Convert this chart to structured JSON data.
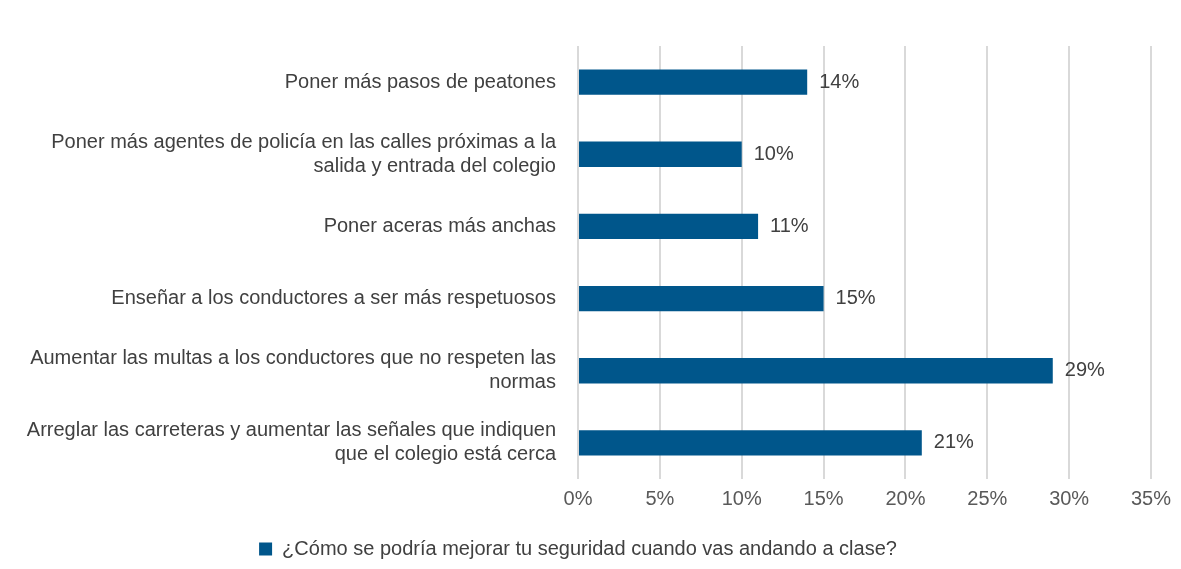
{
  "chart_data": {
    "type": "bar",
    "orientation": "horizontal",
    "categories": [
      "Poner más pasos de peatones",
      "Poner más agentes de policía en las calles próximas a la salida y entrada del colegio",
      "Poner aceras más anchas",
      "Enseñar a los conductores a ser más respetuosos",
      "Aumentar las multas a los conductores que no respeten las normas",
      "Arreglar las carreteras y aumentar las señales que indiquen que el colegio está cerca"
    ],
    "series": [
      {
        "name": "¿Cómo se podría mejorar tu seguridad cuando vas andando a clase?",
        "color": "#00568b",
        "values": [
          14,
          10,
          11,
          15,
          29,
          21
        ],
        "value_labels": [
          "14%",
          "10%",
          "11%",
          "15%",
          "29%",
          "21%"
        ]
      }
    ],
    "xlim": [
      0,
      35
    ],
    "xticks": [
      {
        "value": 0,
        "label": "0%"
      },
      {
        "value": 5,
        "label": "5%"
      },
      {
        "value": 10,
        "label": "10%"
      },
      {
        "value": 15,
        "label": "15%"
      },
      {
        "value": 20,
        "label": "20%"
      },
      {
        "value": 25,
        "label": "25%"
      },
      {
        "value": 30,
        "label": "30%"
      },
      {
        "value": 35,
        "label": "35%"
      }
    ],
    "grid": "x",
    "legend": "bottom"
  }
}
